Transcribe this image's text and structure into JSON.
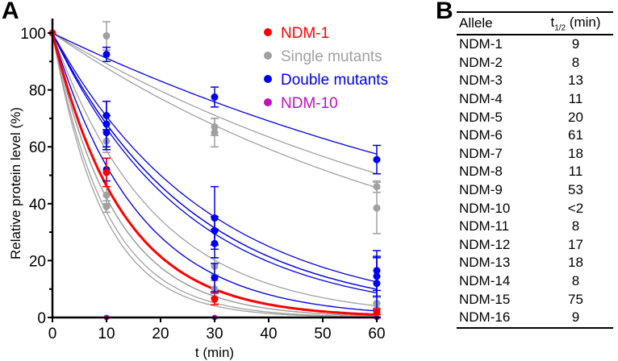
{
  "panels": {
    "a": "A",
    "b": "B"
  },
  "chart_data": {
    "type": "line",
    "title": "",
    "xlabel": "t (min)",
    "ylabel": "Relative protein level (%)",
    "xlim": [
      0,
      60
    ],
    "ylim": [
      0,
      100
    ],
    "xticks": [
      0,
      10,
      20,
      30,
      40,
      50,
      60
    ],
    "yticks": [
      0,
      20,
      40,
      60,
      80,
      100
    ],
    "grid": false,
    "legend_position": "top-right",
    "legend": [
      {
        "label": "NDM-1",
        "color": "#ff0000"
      },
      {
        "label": "Single mutants",
        "color": "#a0a0a0"
      },
      {
        "label": "Double mutants",
        "color": "#0000ee"
      },
      {
        "label": "NDM-10",
        "color": "#c010c0"
      }
    ],
    "colors": {
      "NDM-1": "#ff0000",
      "single": "#a0a0a0",
      "double": "#0000ee",
      "NDM-10": "#c010c0"
    },
    "fit_curves": [
      {
        "group": "single",
        "half_life": 61
      },
      {
        "group": "single",
        "half_life": 53
      },
      {
        "group": "single",
        "half_life": 13
      },
      {
        "group": "single",
        "half_life": 11
      },
      {
        "group": "single",
        "half_life": 9
      },
      {
        "group": "single",
        "half_life": 8
      },
      {
        "group": "single",
        "half_life": 8
      },
      {
        "group": "single",
        "half_life": 8
      },
      {
        "group": "single",
        "half_life": 7
      },
      {
        "group": "single",
        "half_life": 6.5
      },
      {
        "group": "double",
        "half_life": 75
      },
      {
        "group": "double",
        "half_life": 20
      },
      {
        "group": "double",
        "half_life": 18
      },
      {
        "group": "double",
        "half_life": 18
      },
      {
        "group": "double",
        "half_life": 17
      },
      {
        "group": "double",
        "half_life": 11
      },
      {
        "group": "NDM-1",
        "half_life": 9
      }
    ],
    "points": [
      {
        "group": "single",
        "t": 10,
        "y": 99,
        "err": 5
      },
      {
        "group": "single",
        "t": 10,
        "y": 62,
        "err": 4
      },
      {
        "group": "single",
        "t": 10,
        "y": 43,
        "err": 3
      },
      {
        "group": "single",
        "t": 10,
        "y": 39,
        "err": 2
      },
      {
        "group": "single",
        "t": 30,
        "y": 67,
        "err": 3
      },
      {
        "group": "single",
        "t": 30,
        "y": 65,
        "err": 5
      },
      {
        "group": "single",
        "t": 30,
        "y": 18,
        "err": 3
      },
      {
        "group": "single",
        "t": 30,
        "y": 10,
        "err": 3
      },
      {
        "group": "single",
        "t": 60,
        "y": 46,
        "err": 2
      },
      {
        "group": "single",
        "t": 60,
        "y": 38.5,
        "err": 9
      },
      {
        "group": "single",
        "t": 60,
        "y": 5,
        "err": 2
      },
      {
        "group": "single",
        "t": 60,
        "y": 3,
        "err": 2
      },
      {
        "group": "double",
        "t": 10,
        "y": 92.5,
        "err": 2.5
      },
      {
        "group": "double",
        "t": 10,
        "y": 71,
        "err": 5
      },
      {
        "group": "double",
        "t": 10,
        "y": 68,
        "err": 8
      },
      {
        "group": "double",
        "t": 10,
        "y": 65,
        "err": 6
      },
      {
        "group": "double",
        "t": 10,
        "y": 52,
        "err": 4
      },
      {
        "group": "double",
        "t": 30,
        "y": 77.5,
        "err": 3.5
      },
      {
        "group": "double",
        "t": 30,
        "y": 35,
        "err": 11
      },
      {
        "group": "double",
        "t": 30,
        "y": 30.5,
        "err": 5
      },
      {
        "group": "double",
        "t": 30,
        "y": 26,
        "err": 5
      },
      {
        "group": "double",
        "t": 30,
        "y": 14,
        "err": 5
      },
      {
        "group": "double",
        "t": 60,
        "y": 55.5,
        "err": 5
      },
      {
        "group": "double",
        "t": 60,
        "y": 16.5,
        "err": 7
      },
      {
        "group": "double",
        "t": 60,
        "y": 14.5,
        "err": 7
      },
      {
        "group": "double",
        "t": 60,
        "y": 12,
        "err": 9
      },
      {
        "group": "NDM-1",
        "t": 0,
        "y": 100,
        "err": 0
      },
      {
        "group": "NDM-1",
        "t": 10,
        "y": 51,
        "err": 5
      },
      {
        "group": "NDM-1",
        "t": 30,
        "y": 6.5,
        "err": 2
      },
      {
        "group": "NDM-1",
        "t": 60,
        "y": 2,
        "err": 1
      },
      {
        "group": "NDM-10",
        "t": 10,
        "y": 0,
        "err": 0
      },
      {
        "group": "NDM-10",
        "t": 30,
        "y": 0,
        "err": 0
      },
      {
        "group": "NDM-10",
        "t": 60,
        "y": 0,
        "err": 0
      }
    ]
  },
  "table": {
    "headers": {
      "allele": "Allele",
      "t_main": "t",
      "t_sub": "1/2",
      "t_unit": " (min)"
    },
    "rows": [
      {
        "allele": "NDM-1",
        "t": "9"
      },
      {
        "allele": "NDM-2",
        "t": "8"
      },
      {
        "allele": "NDM-3",
        "t": "13"
      },
      {
        "allele": "NDM-4",
        "t": "11"
      },
      {
        "allele": "NDM-5",
        "t": "20"
      },
      {
        "allele": "NDM-6",
        "t": "61"
      },
      {
        "allele": "NDM-7",
        "t": "18"
      },
      {
        "allele": "NDM-8",
        "t": "11"
      },
      {
        "allele": "NDM-9",
        "t": "53"
      },
      {
        "allele": "NDM-10",
        "t": "<2"
      },
      {
        "allele": "NDM-11",
        "t": "8"
      },
      {
        "allele": "NDM-12",
        "t": "17"
      },
      {
        "allele": "NDM-13",
        "t": "18"
      },
      {
        "allele": "NDM-14",
        "t": "8"
      },
      {
        "allele": "NDM-15",
        "t": "75"
      },
      {
        "allele": "NDM-16",
        "t": "9"
      }
    ]
  }
}
